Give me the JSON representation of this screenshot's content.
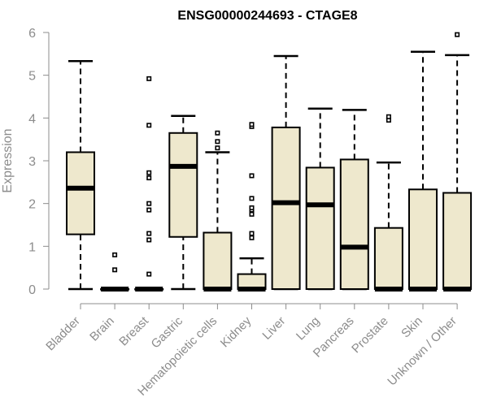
{
  "chart_data": {
    "type": "boxplot",
    "title": "ENSG00000244693 - CTAGE8",
    "ylabel": "Expression",
    "xlabel": "",
    "ylim": [
      0,
      6
    ],
    "yticks": [
      0,
      1,
      2,
      3,
      4,
      5,
      6
    ],
    "box_color": "#eee8cd",
    "axis_color": "#8c8c8c",
    "categories": [
      "Bladder",
      "Brain",
      "Breast",
      "Gastric",
      "Hematopoietic cells",
      "Kidney",
      "Liver",
      "Lung",
      "Pancreas",
      "Prostate",
      "Skin",
      "Unknown / Other"
    ],
    "boxes": [
      {
        "category": "Bladder",
        "min": 0,
        "q1": 1.28,
        "median": 2.36,
        "q3": 3.2,
        "max": 5.33,
        "outliers": []
      },
      {
        "category": "Brain",
        "min": 0,
        "q1": 0,
        "median": 0,
        "q3": 0,
        "max": 0,
        "outliers": [
          0.45,
          0.8
        ]
      },
      {
        "category": "Breast",
        "min": 0,
        "q1": 0,
        "median": 0,
        "q3": 0,
        "max": 0,
        "outliers": [
          0.35,
          1.15,
          1.3,
          1.85,
          2.0,
          2.6,
          2.72,
          3.83,
          4.92
        ]
      },
      {
        "category": "Gastric",
        "min": 0,
        "q1": 1.22,
        "median": 2.87,
        "q3": 3.65,
        "max": 4.05,
        "outliers": []
      },
      {
        "category": "Hematopoietic cells",
        "min": 0,
        "q1": 0,
        "median": 0,
        "q3": 1.32,
        "max": 3.2,
        "outliers": [
          3.3,
          3.45,
          3.65
        ]
      },
      {
        "category": "Kidney",
        "min": 0,
        "q1": 0,
        "median": 0,
        "q3": 0.35,
        "max": 0.72,
        "outliers": [
          1.2,
          1.3,
          1.75,
          1.85,
          1.9,
          2.12,
          2.65,
          3.8,
          3.85
        ]
      },
      {
        "category": "Liver",
        "min": 0,
        "q1": 0,
        "median": 2.02,
        "q3": 3.78,
        "max": 5.45,
        "outliers": []
      },
      {
        "category": "Lung",
        "min": 0,
        "q1": 0,
        "median": 1.97,
        "q3": 2.84,
        "max": 4.22,
        "outliers": []
      },
      {
        "category": "Pancreas",
        "min": 0,
        "q1": 0,
        "median": 0.98,
        "q3": 3.03,
        "max": 4.19,
        "outliers": []
      },
      {
        "category": "Prostate",
        "min": 0,
        "q1": 0,
        "median": 0,
        "q3": 1.43,
        "max": 2.96,
        "outliers": [
          3.95,
          4.03
        ]
      },
      {
        "category": "Skin",
        "min": 0,
        "q1": 0,
        "median": 0,
        "q3": 2.33,
        "max": 5.55,
        "outliers": []
      },
      {
        "category": "Unknown / Other",
        "min": 0,
        "q1": 0,
        "median": 0,
        "q3": 2.25,
        "max": 5.47,
        "outliers": [
          5.95
        ]
      }
    ]
  }
}
